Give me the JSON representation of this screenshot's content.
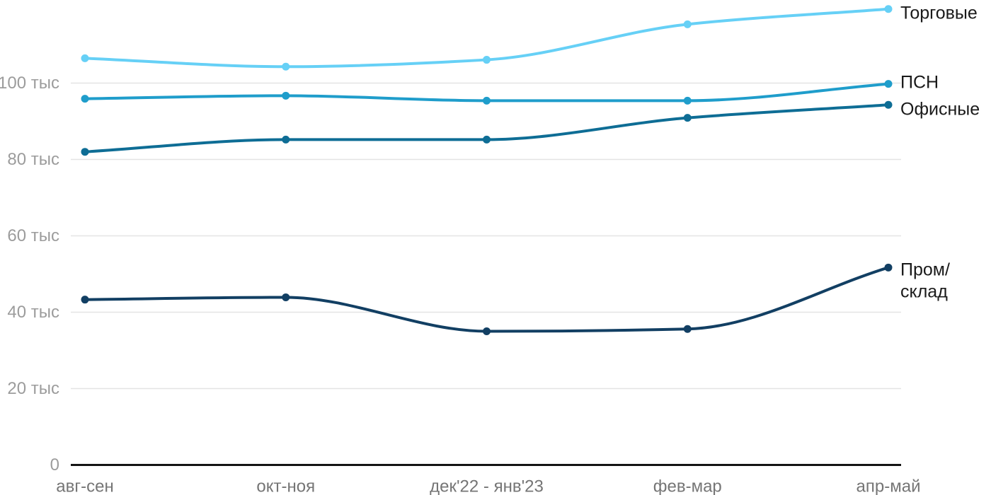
{
  "chart_data": {
    "type": "line",
    "title": "",
    "xlabel": "",
    "ylabel": "",
    "unit_suffix": " тыс",
    "x_categories": [
      "авг-сен",
      "окт-ноя",
      "дек'22 - янв'23",
      "фев-мар",
      "апр-май"
    ],
    "y_ticks": [
      {
        "value": 0,
        "label": "0"
      },
      {
        "value": 20,
        "label": "20 тыс"
      },
      {
        "value": 40,
        "label": "40 тыс"
      },
      {
        "value": 60,
        "label": "60 тыс"
      },
      {
        "value": 80,
        "label": "80 тыс"
      },
      {
        "value": 100,
        "label": "100 тыс"
      }
    ],
    "ylim": [
      0,
      122
    ],
    "grid": true,
    "legend_position": "right-end-of-lines",
    "series": [
      {
        "id": "torgovye",
        "name": "Торговые",
        "label_lines": [
          "Торговые"
        ],
        "color": "#66D0F6",
        "values": [
          106.5,
          104.3,
          106.1,
          115.4,
          119.4
        ]
      },
      {
        "id": "psn",
        "name": "ПСН",
        "label_lines": [
          "ПСН"
        ],
        "color": "#1F9DCB",
        "values": [
          95.9,
          96.7,
          95.4,
          95.4,
          99.8
        ]
      },
      {
        "id": "ofisnye",
        "name": "Офисные",
        "label_lines": [
          "Офисные"
        ],
        "color": "#0E6D95",
        "values": [
          82.0,
          85.2,
          85.2,
          90.9,
          94.3
        ]
      },
      {
        "id": "prom-sklad",
        "name": "Пром/склад",
        "label_lines": [
          "Пром/",
          "склад"
        ],
        "color": "#123F63",
        "values": [
          43.3,
          43.9,
          35.0,
          35.6,
          51.7
        ]
      }
    ],
    "colors": {
      "gridline": "#e4e4e4",
      "axis_line": "#141414",
      "y_tick_label": "#9c9c9c",
      "x_tick_label": "#757575",
      "series_label": "#1a1a1a",
      "background": "#ffffff"
    }
  }
}
